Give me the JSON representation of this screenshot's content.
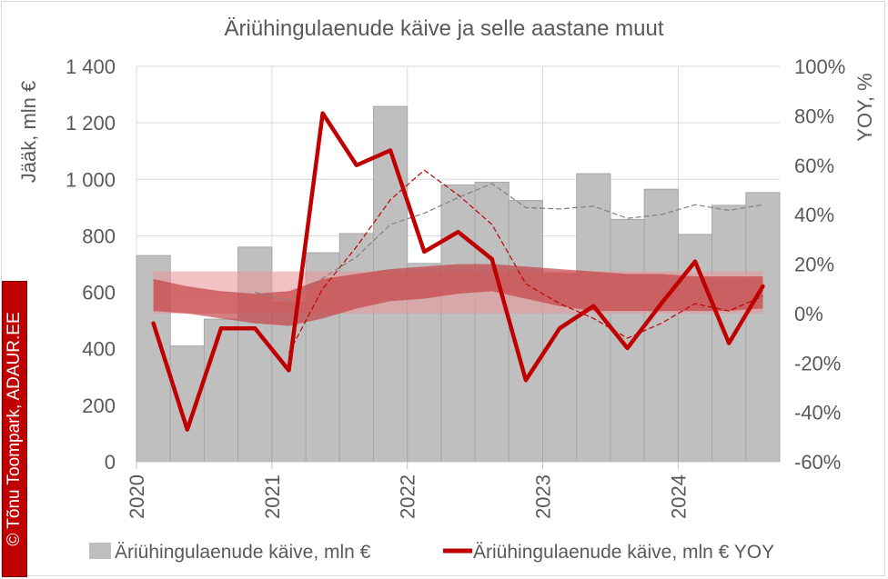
{
  "chart_data": {
    "type": "bar+line",
    "title": "Äriühingulaenude käive ja selle aastane muut",
    "ylabel": "Jääk, mln €",
    "y2label": "YOY, %",
    "ylim": [
      0,
      1400
    ],
    "y2lim": [
      -60,
      100
    ],
    "yticks": [
      "0",
      "200",
      "400",
      "600",
      "800",
      "1 000",
      "1 200",
      "1 400"
    ],
    "y2ticks": [
      "-60%",
      "-40%",
      "-20%",
      "0%",
      "20%",
      "40%",
      "60%",
      "80%",
      "100%"
    ],
    "xticks": [
      "2020",
      "2021",
      "2022",
      "2023",
      "2024"
    ],
    "x": [
      "2020Q1",
      "2020Q2",
      "2020Q3",
      "2020Q4",
      "2021Q1",
      "2021Q2",
      "2021Q3",
      "2021Q4",
      "2022Q1",
      "2022Q2",
      "2022Q3",
      "2022Q4",
      "2023Q1",
      "2023Q2",
      "2023Q3",
      "2023Q4",
      "2024Q1",
      "2024Q2",
      "2024Q3"
    ],
    "grid": true,
    "legend_position": "bottom",
    "series": [
      {
        "name": "Äriühingulaenude käive, mln €",
        "type": "bar",
        "axis": "left",
        "color": "#bfbfbf",
        "values": [
          730,
          410,
          505,
          760,
          565,
          740,
          808,
          1258,
          702,
          980,
          990,
          925,
          665,
          1020,
          858,
          965,
          805,
          908,
          953
        ]
      },
      {
        "name": "Äriühingulaenude käive, mln € YOY",
        "type": "line",
        "axis": "right",
        "color": "#c00000",
        "values": [
          -4,
          -47,
          -6,
          -6,
          -23,
          81,
          60,
          66,
          25,
          33,
          22,
          -27,
          -6,
          3,
          -14,
          4,
          21,
          -12,
          11
        ]
      }
    ],
    "trend_lines": [
      {
        "style": "dashed",
        "axis": "right",
        "color": "#c00000",
        "values": [
          null,
          null,
          null,
          null,
          -16,
          10,
          27,
          46,
          58,
          48,
          36,
          12,
          4,
          -2,
          -10,
          -4,
          4,
          1,
          7
        ]
      },
      {
        "style": "dashed",
        "axis": "left",
        "color": "#808080",
        "values": [
          null,
          null,
          null,
          600,
          570,
          650,
          725,
          840,
          880,
          935,
          985,
          900,
          895,
          905,
          862,
          875,
          910,
          890,
          910
        ]
      }
    ],
    "bands": [
      {
        "axis": "right",
        "color": "#e6999b",
        "lower": [
          0,
          0,
          0,
          0,
          0,
          0,
          0,
          0,
          0,
          0,
          0,
          0,
          0,
          0,
          0,
          0,
          0,
          0,
          0
        ],
        "upper": [
          17,
          17,
          17,
          17,
          17,
          17,
          17,
          17,
          17,
          17,
          17,
          17,
          17,
          17,
          17,
          17,
          17,
          17,
          17
        ]
      },
      {
        "axis": "right",
        "color": "#c4393c",
        "lower": [
          1,
          0,
          -2,
          -4,
          -5,
          -2,
          2,
          5,
          6,
          8,
          9,
          6,
          3,
          1,
          1,
          1,
          1,
          1,
          2
        ],
        "upper": [
          14,
          11,
          9,
          8,
          9,
          14,
          16,
          18,
          19,
          20,
          20,
          19,
          18,
          17,
          16,
          16,
          15,
          15,
          15
        ]
      }
    ]
  },
  "credit": "© Tõnu Toompark, ADAUR.EE"
}
